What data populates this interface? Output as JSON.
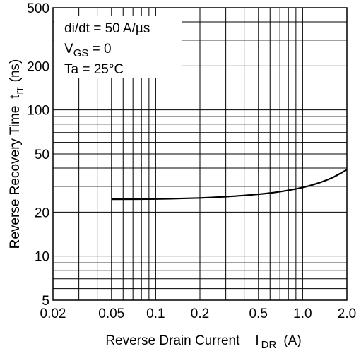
{
  "chart_data": {
    "type": "line",
    "title": "",
    "xscale": "log",
    "yscale": "log",
    "xlim": [
      0.02,
      2.0
    ],
    "ylim": [
      5,
      500
    ],
    "grid": true,
    "x_ticks": [
      {
        "v": 0.02,
        "label": "0.02"
      },
      {
        "v": 0.05,
        "label": "0.05"
      },
      {
        "v": 0.1,
        "label": "0.1"
      },
      {
        "v": 0.2,
        "label": "0.2"
      },
      {
        "v": 0.5,
        "label": "0.5"
      },
      {
        "v": 1.0,
        "label": "1.0"
      },
      {
        "v": 2.0,
        "label": "2.0"
      }
    ],
    "y_ticks": [
      {
        "v": 5,
        "label": "5"
      },
      {
        "v": 10,
        "label": "10"
      },
      {
        "v": 20,
        "label": "20"
      },
      {
        "v": 50,
        "label": "50"
      },
      {
        "v": 100,
        "label": "100"
      },
      {
        "v": 200,
        "label": "200"
      },
      {
        "v": 500,
        "label": "500"
      }
    ],
    "xlabel": {
      "main": "Reverse Drain Current",
      "sym": "I",
      "sub": "DR",
      "unit": "(A)"
    },
    "ylabel": {
      "main": "Reverse Recovery Time",
      "sym": "t",
      "sub": "rr",
      "unit": "(ns)"
    },
    "annotations": [
      {
        "text": "di/dt = 50 A/µs"
      },
      {
        "prefix": "V",
        "sub": "GS",
        "suffix": " = 0"
      },
      {
        "text": "Ta = 25°C"
      }
    ],
    "series": [
      {
        "x": [
          0.05,
          0.1,
          0.2,
          0.3,
          0.5,
          0.7,
          1.0,
          1.3,
          1.6,
          2.0
        ],
        "y": [
          24.5,
          24.6,
          25.0,
          25.5,
          26.5,
          27.6,
          29.5,
          31.8,
          34.5,
          39.0
        ]
      }
    ]
  }
}
